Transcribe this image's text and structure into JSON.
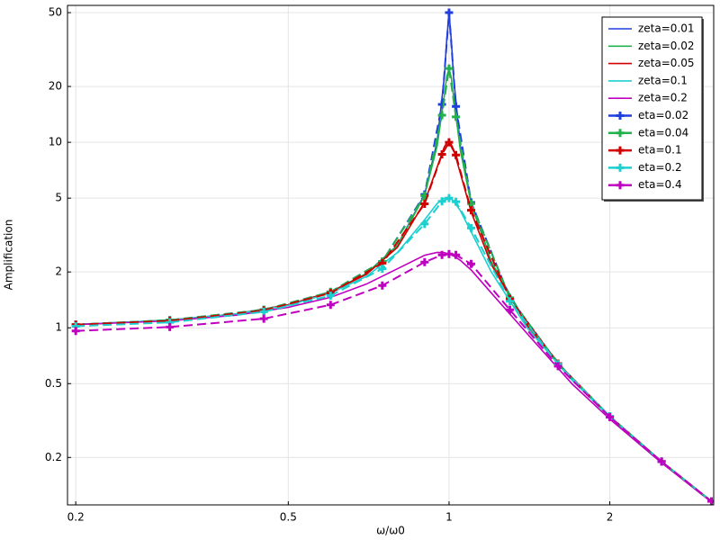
{
  "chart_data": {
    "type": "line",
    "xlabel": "ω/ω0",
    "ylabel": "Amplification",
    "xscale": "log",
    "yscale": "log",
    "xlim": [
      0.193,
      3.13
    ],
    "ylim": [
      0.111,
      54.7
    ],
    "xticks": [
      0.2,
      0.5,
      1,
      2
    ],
    "yticks": [
      0.2,
      0.5,
      1,
      2,
      5,
      10,
      20,
      50
    ],
    "grid": true,
    "legend": "upper right",
    "x": [
      0.2,
      0.3,
      0.4,
      0.5,
      0.6,
      0.7,
      0.8,
      0.9,
      0.95,
      0.98,
      0.99,
      1,
      1.01,
      1.02,
      1.05,
      1.1,
      1.2,
      1.4,
      1.7,
      2,
      2.5,
      3.1
    ],
    "series": [
      {
        "name": "zeta=0.01",
        "color": "#1f3fdf",
        "linestyle": "solid",
        "values": [
          1.04,
          1.1,
          1.19,
          1.33,
          1.56,
          1.96,
          2.78,
          5.24,
          10.07,
          22.6,
          35.6,
          50,
          35.1,
          22.1,
          9.56,
          4.76,
          2.27,
          1.04,
          0.529,
          0.333,
          0.19,
          0.116
        ]
      },
      {
        "name": "zeta=0.02",
        "color": "#22b14c",
        "linestyle": "solid",
        "values": [
          1.04,
          1.1,
          1.19,
          1.33,
          1.56,
          1.96,
          2.77,
          5.17,
          9.56,
          17.9,
          22.6,
          25,
          22.2,
          17.4,
          9.03,
          4.66,
          2.26,
          1.04,
          0.529,
          0.333,
          0.19,
          0.116
        ]
      },
      {
        "name": "zeta=0.05",
        "color": "#d00000",
        "linestyle": "solid",
        "values": [
          1.04,
          1.1,
          1.19,
          1.33,
          1.56,
          1.94,
          2.71,
          4.76,
          7.35,
          9.46,
          9.9,
          10,
          9.71,
          9.11,
          6.81,
          4.22,
          2.19,
          1.03,
          0.527,
          0.333,
          0.19,
          0.116
        ]
      },
      {
        "name": "zeta=0.1",
        "color": "#1ecfcf",
        "linestyle": "solid",
        "values": [
          1.04,
          1.1,
          1.19,
          1.32,
          1.54,
          1.89,
          2.54,
          3.82,
          4.68,
          5.0,
          5.03,
          5,
          4.93,
          4.81,
          4.28,
          3.29,
          2.0,
          1.0,
          0.521,
          0.33,
          0.19,
          0.116
        ]
      },
      {
        "name": "zeta=0.2",
        "color": "#c000c0",
        "linestyle": "solid",
        "values": [
          1.04,
          1.09,
          1.17,
          1.29,
          1.46,
          1.72,
          2.08,
          2.46,
          2.55,
          2.54,
          2.52,
          2.5,
          2.47,
          2.44,
          2.31,
          2.05,
          1.54,
          0.931,
          0.498,
          0.322,
          0.187,
          0.115
        ]
      },
      {
        "name": "eta=0.02",
        "color": "#1f3fdf",
        "linestyle": "dashed",
        "marker": "plus",
        "x": [
          0.2,
          0.3,
          0.45,
          0.6,
          0.75,
          0.9,
          0.97,
          1,
          1.03,
          1.1,
          1.3,
          1.6,
          2,
          2.5,
          3.1
        ],
        "values": [
          1.04,
          1.1,
          1.25,
          1.56,
          2.28,
          5.23,
          16.0,
          50,
          15.6,
          4.74,
          1.45,
          0.641,
          0.333,
          0.19,
          0.116
        ]
      },
      {
        "name": "eta=0.04",
        "color": "#22b14c",
        "linestyle": "dashed",
        "marker": "plus",
        "x": [
          0.2,
          0.3,
          0.45,
          0.6,
          0.75,
          0.9,
          0.97,
          1,
          1.03,
          1.1,
          1.3,
          1.6,
          2,
          2.5,
          3.1
        ],
        "values": [
          1.04,
          1.1,
          1.25,
          1.56,
          2.28,
          5.15,
          14.0,
          25,
          13.7,
          4.68,
          1.45,
          0.641,
          0.333,
          0.19,
          0.116
        ]
      },
      {
        "name": "eta=0.1",
        "color": "#d00000",
        "linestyle": "dashed",
        "marker": "plus",
        "x": [
          0.2,
          0.3,
          0.45,
          0.6,
          0.75,
          0.9,
          0.97,
          1,
          1.03,
          1.1,
          1.3,
          1.6,
          2,
          2.5,
          3.1
        ],
        "values": [
          1.04,
          1.09,
          1.24,
          1.54,
          2.23,
          4.66,
          8.61,
          10,
          8.54,
          4.3,
          1.43,
          0.64,
          0.333,
          0.19,
          0.116
        ]
      },
      {
        "name": "eta=0.2",
        "color": "#1ecfcf",
        "linestyle": "dashed",
        "marker": "plus",
        "x": [
          0.2,
          0.3,
          0.45,
          0.6,
          0.75,
          0.9,
          0.97,
          1,
          1.03,
          1.1,
          1.3,
          1.6,
          2,
          2.5,
          3.1
        ],
        "values": [
          1.02,
          1.07,
          1.22,
          1.49,
          2.08,
          3.63,
          4.8,
          5,
          4.78,
          3.45,
          1.39,
          0.636,
          0.333,
          0.19,
          0.116
        ]
      },
      {
        "name": "eta=0.4",
        "color": "#c000c0",
        "linestyle": "dashed",
        "marker": "plus",
        "x": [
          0.2,
          0.3,
          0.45,
          0.6,
          0.75,
          0.9,
          0.97,
          1,
          1.03,
          1.1,
          1.3,
          1.6,
          2,
          2.5,
          3.1
        ],
        "values": [
          0.962,
          1.01,
          1.12,
          1.33,
          1.69,
          2.26,
          2.47,
          2.5,
          2.47,
          2.21,
          1.25,
          0.621,
          0.33,
          0.19,
          0.116
        ]
      }
    ]
  }
}
